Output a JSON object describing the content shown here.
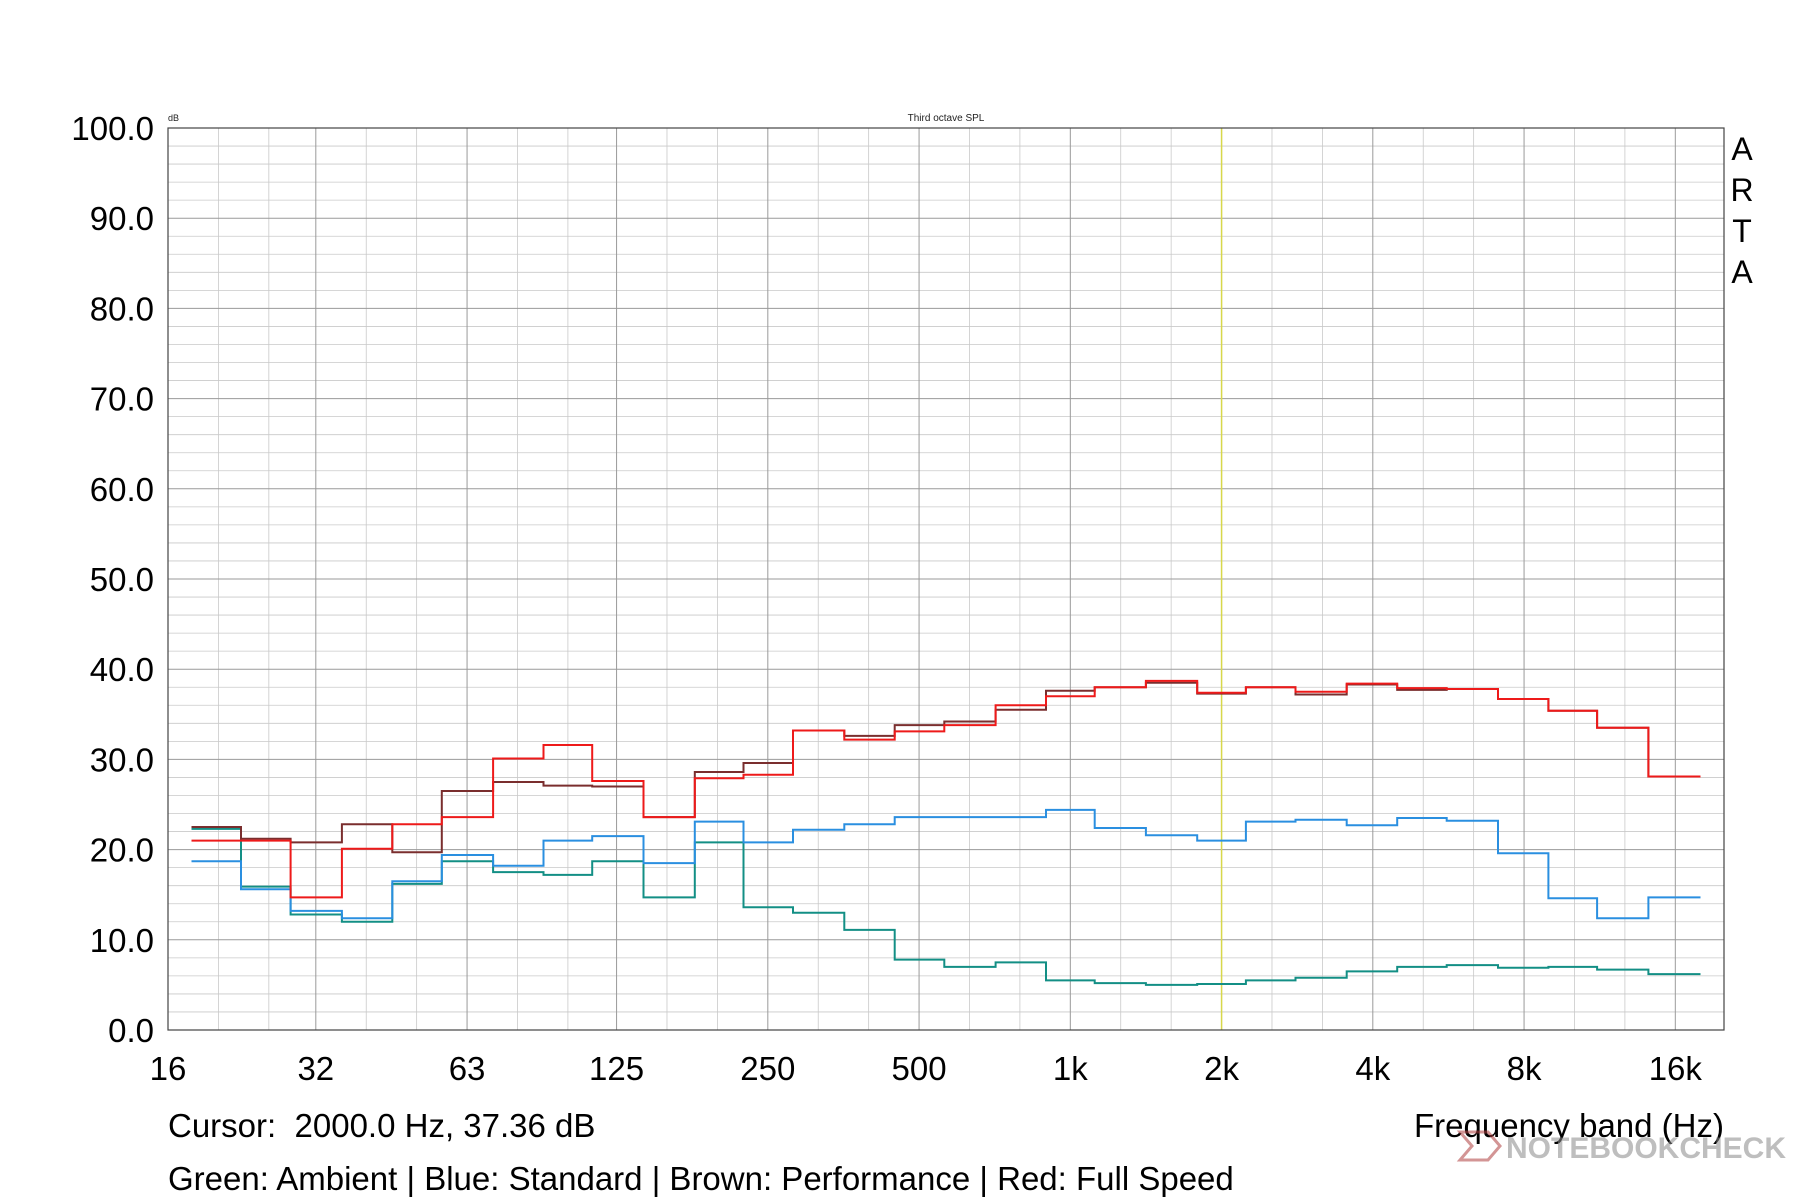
{
  "chart_data": {
    "type": "line",
    "title": "Third octave SPL",
    "y_unit": "dB",
    "xlabel": "Frequency band (Hz)",
    "x_scale": "log",
    "xlim": [
      16,
      20000
    ],
    "ylim": [
      0,
      100
    ],
    "x_tick_labels": [
      "16",
      "32",
      "63",
      "125",
      "250",
      "500",
      "1k",
      "2k",
      "4k",
      "8k",
      "16k"
    ],
    "x_tick_values": [
      16,
      31.5,
      63,
      125,
      250,
      500,
      1000,
      2000,
      4000,
      8000,
      16000
    ],
    "y_tick_labels": [
      "0.0",
      "10.0",
      "20.0",
      "30.0",
      "40.0",
      "50.0",
      "60.0",
      "70.0",
      "80.0",
      "90.0",
      "100.0"
    ],
    "y_tick_values": [
      0,
      10,
      20,
      30,
      40,
      50,
      60,
      70,
      80,
      90,
      100
    ],
    "brand_text": "ARTA",
    "cursor_text": "Cursor:  2000.0 Hz, 37.36 dB",
    "cursor_x": 2000,
    "legend_text": "Green: Ambient | Blue: Standard | Brown: Performance | Red: Full Speed",
    "watermark": "NOTEBOOKCHECK",
    "grid": true,
    "colors": {
      "cursor": "#d8d84a",
      "grid_major": "#9a9a9a",
      "grid_minor": "#c9c9c9"
    },
    "band_centers": [
      20,
      25,
      31.5,
      40,
      50,
      63,
      80,
      100,
      125,
      160,
      200,
      250,
      315,
      400,
      500,
      630,
      800,
      1000,
      1250,
      1600,
      2000,
      2500,
      3150,
      4000,
      5000,
      6300,
      8000,
      10000,
      12500,
      16000
    ],
    "series": [
      {
        "color": "#138f85",
        "values": [
          22.3,
          15.9,
          12.8,
          12.0,
          16.2,
          18.7,
          17.5,
          17.2,
          18.7,
          14.7,
          20.8,
          13.6,
          13.0,
          11.1,
          7.8,
          7.0,
          7.5,
          5.5,
          5.2,
          5.0,
          5.1,
          5.5,
          5.8,
          6.5,
          7.0,
          7.2,
          6.9,
          7.0,
          6.7,
          6.2
        ]
      },
      {
        "color": "#2a8fe0",
        "values": [
          18.7,
          15.6,
          13.2,
          12.4,
          16.5,
          19.4,
          18.2,
          21.0,
          21.5,
          18.5,
          23.1,
          20.8,
          22.2,
          22.8,
          23.6,
          23.6,
          23.6,
          24.4,
          22.4,
          21.6,
          21.0,
          23.1,
          23.3,
          22.7,
          23.5,
          23.2,
          19.6,
          14.6,
          12.4,
          14.7
        ]
      },
      {
        "color": "#7a2e2e",
        "values": [
          22.5,
          21.2,
          20.8,
          22.8,
          19.7,
          26.5,
          27.5,
          27.1,
          27.0,
          23.6,
          28.6,
          29.6,
          33.2,
          32.6,
          33.8,
          34.2,
          35.5,
          37.6,
          38.0,
          38.5,
          37.3,
          38.0,
          37.2,
          38.3,
          37.7,
          37.8,
          36.7,
          35.4,
          33.5,
          28.1
        ]
      },
      {
        "color": "#ee1a1a",
        "values": [
          21.0,
          21.0,
          14.7,
          20.1,
          22.8,
          23.6,
          30.1,
          31.6,
          27.6,
          23.6,
          27.9,
          28.3,
          33.2,
          32.2,
          33.1,
          33.8,
          36.0,
          37.0,
          38.0,
          38.7,
          37.4,
          38.0,
          37.5,
          38.4,
          37.9,
          37.8,
          36.7,
          35.4,
          33.5,
          28.1
        ]
      }
    ]
  }
}
